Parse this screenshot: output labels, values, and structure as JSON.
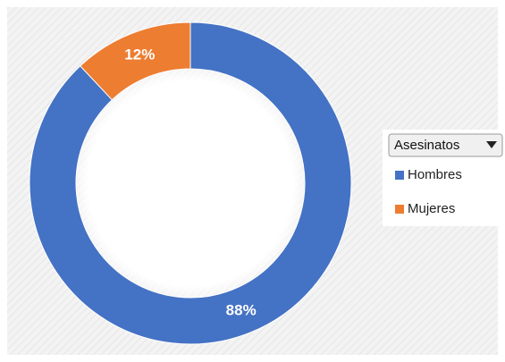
{
  "chart_data": {
    "type": "donut",
    "legend_title": "Asesinatos",
    "categories": [
      "Hombres",
      "Mujeres"
    ],
    "values": [
      88,
      12
    ],
    "value_labels": [
      "88%",
      "12%"
    ],
    "colors": [
      "#4472c4",
      "#ed7d31"
    ],
    "legend": "right"
  }
}
